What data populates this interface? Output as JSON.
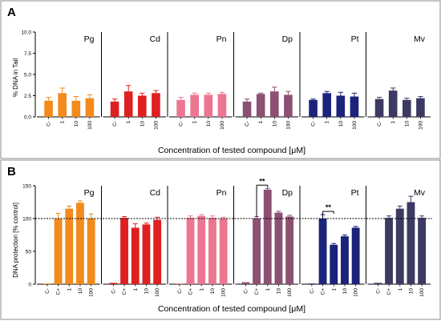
{
  "panel_labels": [
    "A",
    "B"
  ],
  "chart_data": [
    {
      "panel": "A",
      "type": "bar",
      "ylabel": "% DNA in Tail",
      "xlabel": "Concentration of tested compound [μM]",
      "ylim": [
        0,
        10
      ],
      "yticks": [
        "0.0",
        "2.5",
        "5.0",
        "7.5",
        "10.0"
      ],
      "groups": [
        {
          "name": "Pg",
          "color": "#f28a1c",
          "categories": [
            "C-",
            "1",
            "10",
            "100"
          ],
          "values": [
            1.9,
            2.8,
            1.9,
            2.2
          ],
          "errors": [
            0.4,
            0.6,
            0.5,
            0.4
          ]
        },
        {
          "name": "Cd",
          "color": "#de2020",
          "categories": [
            "C-",
            "1",
            "10",
            "100"
          ],
          "values": [
            1.8,
            3.0,
            2.5,
            2.8
          ],
          "errors": [
            0.3,
            0.7,
            0.3,
            0.3
          ]
        },
        {
          "name": "Pn",
          "color": "#ec7690",
          "categories": [
            "C-",
            "1",
            "10",
            "100"
          ],
          "values": [
            2.0,
            2.6,
            2.6,
            2.7
          ],
          "errors": [
            0.3,
            0.2,
            0.2,
            0.2
          ]
        },
        {
          "name": "Dp",
          "color": "#8c5072",
          "categories": [
            "C-",
            "1",
            "10",
            "100"
          ],
          "values": [
            1.8,
            2.7,
            3.0,
            2.6
          ],
          "errors": [
            0.3,
            0.1,
            0.5,
            0.4
          ]
        },
        {
          "name": "Pt",
          "color": "#1b237a",
          "categories": [
            "C-",
            "1",
            "10",
            "100"
          ],
          "values": [
            2.0,
            2.8,
            2.5,
            2.4
          ],
          "errors": [
            0.1,
            0.2,
            0.4,
            0.4
          ]
        },
        {
          "name": "Mv",
          "color": "#3c3a62",
          "categories": [
            "C-",
            "1",
            "10",
            "100"
          ],
          "values": [
            2.1,
            3.1,
            2.0,
            2.2
          ],
          "errors": [
            0.2,
            0.3,
            0.2,
            0.2
          ]
        }
      ]
    },
    {
      "panel": "B",
      "type": "bar",
      "ylabel": "DNA protection [% control]",
      "xlabel": "Concentration of tested compound [μM]",
      "ylim": [
        0,
        150
      ],
      "yticks": [
        "0",
        "50",
        "100",
        "150"
      ],
      "reference_line": 100,
      "groups": [
        {
          "name": "Pg",
          "color": "#f28a1c",
          "categories": [
            "C-",
            "C+",
            "1",
            "10",
            "100"
          ],
          "values": [
            1,
            100,
            115,
            124,
            100
          ],
          "errors": [
            0,
            8,
            4,
            3,
            7
          ],
          "annotation": null
        },
        {
          "name": "Cd",
          "color": "#de2020",
          "categories": [
            "C-",
            "C+",
            "1",
            "10",
            "100"
          ],
          "values": [
            2,
            101,
            86,
            91,
            98
          ],
          "errors": [
            0,
            2,
            6,
            2,
            4
          ],
          "annotation": null
        },
        {
          "name": "Pn",
          "color": "#ec7690",
          "categories": [
            "C-",
            "C+",
            "1",
            "10",
            "100"
          ],
          "values": [
            1,
            101,
            104,
            101,
            100
          ],
          "errors": [
            0,
            3,
            2,
            3,
            2
          ],
          "annotation": null
        },
        {
          "name": "Dp",
          "color": "#8c5072",
          "categories": [
            "C-",
            "C+",
            "1",
            "10",
            "100"
          ],
          "values": [
            3,
            100,
            144,
            109,
            103
          ],
          "errors": [
            0,
            3,
            2,
            2,
            2
          ],
          "annotation": {
            "label": "**",
            "from": 1,
            "to": 2
          }
        },
        {
          "name": "Pt",
          "color": "#1b237a",
          "categories": [
            "C-",
            "C+",
            "1",
            "10",
            "100"
          ],
          "values": [
            1,
            100,
            60,
            73,
            86
          ],
          "errors": [
            0,
            6,
            2,
            2,
            2
          ],
          "annotation": {
            "label": "**",
            "from": 1,
            "to": 2
          }
        },
        {
          "name": "Mv",
          "color": "#3c3a62",
          "categories": [
            "C-",
            "C+",
            "1",
            "10",
            "100"
          ],
          "values": [
            2,
            101,
            115,
            125,
            101
          ],
          "errors": [
            0,
            3,
            4,
            9,
            3
          ],
          "annotation": null
        }
      ]
    }
  ]
}
